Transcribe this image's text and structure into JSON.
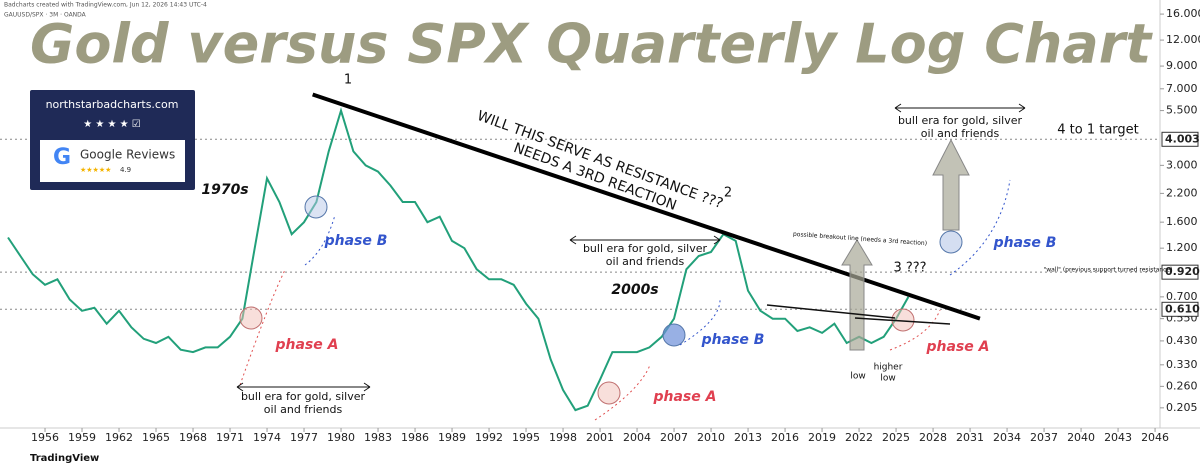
{
  "header": "Badcharts created with TradingView.com, Jun 12, 2026 14:43 UTC-4",
  "symbol": "GAUUSD/SPX · 3M · OANDA",
  "badge": {
    "site": "northstarbadcharts.com",
    "reviews": "Google Reviews",
    "rating": "4.9"
  },
  "footer": "TradingView",
  "chart_data": {
    "type": "line",
    "title": "Gold versus SPX Quarterly Log Chart",
    "log_y": true,
    "x": [
      1953,
      1954,
      1955,
      1956,
      1957,
      1958,
      1959,
      1960,
      1961,
      1962,
      1963,
      1964,
      1965,
      1966,
      1967,
      1968,
      1969,
      1970,
      1971,
      1972,
      1973,
      1974,
      1975,
      1976,
      1977,
      1978,
      1979,
      1980,
      1981,
      1982,
      1983,
      1984,
      1985,
      1986,
      1987,
      1988,
      1989,
      1990,
      1991,
      1992,
      1993,
      1994,
      1995,
      1996,
      1997,
      1998,
      1999,
      2000,
      2001,
      2002,
      2003,
      2004,
      2005,
      2006,
      2007,
      2008,
      2009,
      2010,
      2011,
      2012,
      2013,
      2014,
      2015,
      2016,
      2017,
      2018,
      2019,
      2020,
      2021,
      2022,
      2023,
      2024,
      2025,
      2026
    ],
    "series": [
      {
        "name": "GAUUSD/SPX",
        "color": "#22a07a",
        "values": [
          1.35,
          1.1,
          0.9,
          0.8,
          0.85,
          0.68,
          0.6,
          0.62,
          0.52,
          0.6,
          0.5,
          0.44,
          0.42,
          0.45,
          0.39,
          0.38,
          0.4,
          0.4,
          0.45,
          0.55,
          1.2,
          2.6,
          2.0,
          1.4,
          1.6,
          2.0,
          3.5,
          5.5,
          3.5,
          3.0,
          2.8,
          2.4,
          2.0,
          2.0,
          1.6,
          1.7,
          1.3,
          1.2,
          0.95,
          0.85,
          0.85,
          0.8,
          0.65,
          0.55,
          0.35,
          0.25,
          0.2,
          0.21,
          0.28,
          0.38,
          0.38,
          0.38,
          0.4,
          0.45,
          0.55,
          0.95,
          1.1,
          1.15,
          1.4,
          1.3,
          0.75,
          0.6,
          0.55,
          0.55,
          0.48,
          0.5,
          0.47,
          0.52,
          0.42,
          0.45,
          0.42,
          0.45,
          0.55,
          0.7
        ]
      }
    ],
    "xlim": [
      1952.35,
      2046.4
    ],
    "xticks": [
      1956,
      1959,
      1962,
      1965,
      1968,
      1971,
      1974,
      1977,
      1980,
      1983,
      1986,
      1989,
      1992,
      1995,
      1998,
      2001,
      2004,
      2007,
      2010,
      2013,
      2016,
      2019,
      2022,
      2025,
      2028,
      2031,
      2034,
      2037,
      2040,
      2043,
      2046
    ],
    "ylim": [
      0.164,
      18.7
    ],
    "yticks": [
      {
        "value": 16,
        "label": "16.000"
      },
      {
        "value": 12,
        "label": "12.000"
      },
      {
        "value": 9,
        "label": "9.000"
      },
      {
        "value": 7,
        "label": "7.000"
      },
      {
        "value": 5.5,
        "label": "5.500"
      },
      {
        "value": 3,
        "label": "3.000"
      },
      {
        "value": 2.2,
        "label": "2.200"
      },
      {
        "value": 1.6,
        "label": "1.600"
      },
      {
        "value": 1.2,
        "label": "1.200"
      },
      {
        "value": 0.7,
        "label": "0.700"
      },
      {
        "value": 0.55,
        "label": "0.550"
      },
      {
        "value": 0.43,
        "label": "0.430"
      },
      {
        "value": 0.33,
        "label": "0.330"
      },
      {
        "value": 0.26,
        "label": "0.260"
      },
      {
        "value": 0.205,
        "label": "0.205"
      }
    ],
    "hlines": [
      {
        "value": 4.003,
        "label": "4.003"
      },
      {
        "value": 0.92,
        "label": "0.920"
      },
      {
        "value": 0.61,
        "label": "0.610"
      }
    ],
    "trendline": {
      "x": [
        1977.7,
        2031.8
      ],
      "values": [
        6.57,
        0.55
      ]
    },
    "annotations": {
      "peak_1": "1",
      "peak_2": "2",
      "peak_3": "3 ???",
      "decade_70s": "1970s",
      "decade_00s": "2000s",
      "phase_a": [
        "phase A",
        "phase A",
        "phase A"
      ],
      "phase_b": [
        "phase B",
        "phase B",
        "phase B"
      ],
      "bull_era": [
        [
          "bull era for gold, silver",
          "oil and friends"
        ],
        [
          "bull era for gold, silver",
          "oil and friends"
        ],
        [
          "bull era for gold, silver",
          "oil and friends"
        ]
      ],
      "resistance": [
        "WILL THIS SERVE AS RESISTANCE ???",
        "NEEDS A 3RD REACTION"
      ],
      "breakout": "possible breakout line (needs a 3rd reaction)",
      "wall": "\"wall\" (previous support turned resistance)",
      "target": "4 to 1 target",
      "low": "low",
      "higher_low": [
        "higher",
        "low"
      ]
    }
  }
}
